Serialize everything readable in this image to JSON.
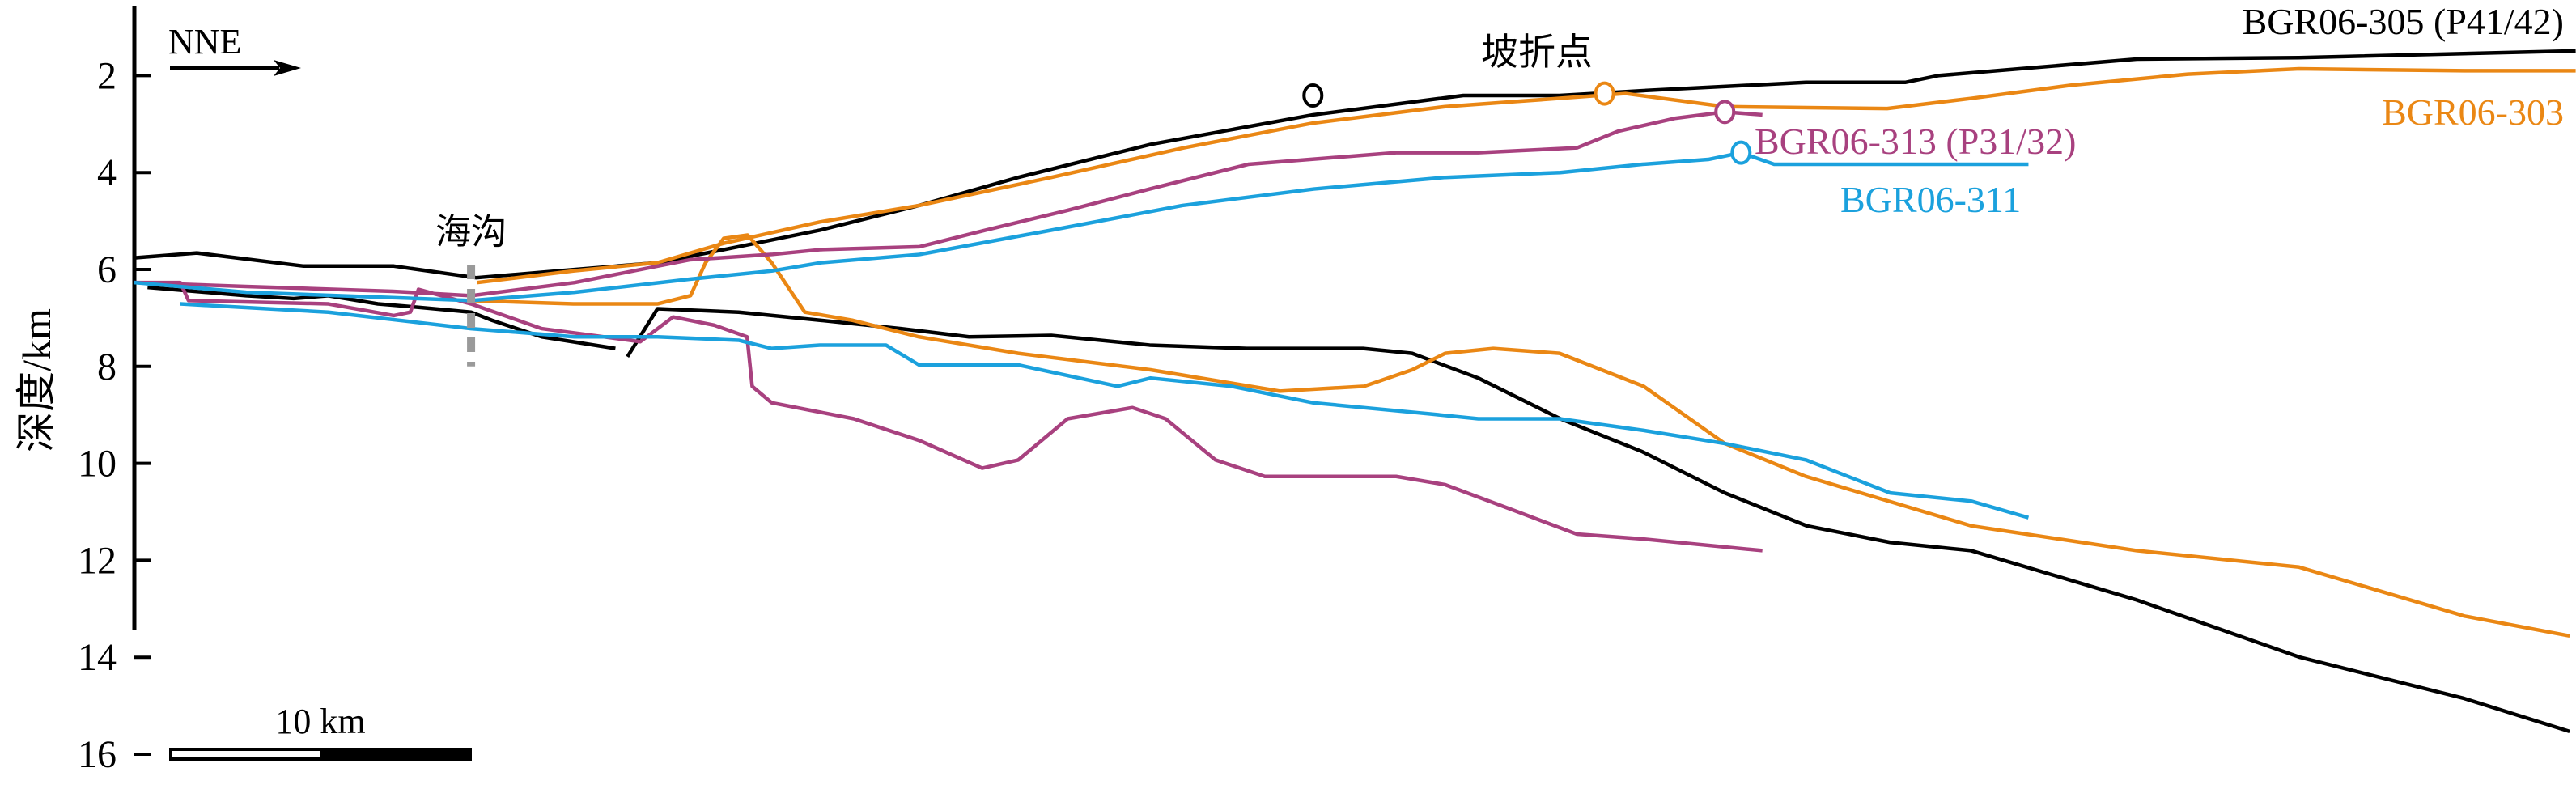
{
  "chart_data": {
    "type": "line",
    "title": "",
    "xlabel": "",
    "ylabel": "深度/km",
    "ylim": [
      1,
      16.3
    ],
    "y_inverted": true,
    "yticks": [
      2,
      4,
      6,
      8,
      10,
      12,
      14,
      16
    ],
    "ytick_labels": [
      "2",
      "4",
      "6",
      "8",
      "10",
      "12",
      "14",
      "16"
    ],
    "xlim_km": [
      0,
      81.2
    ],
    "grid": false,
    "direction_label": "NNE",
    "scale_bar": {
      "label": "10 km",
      "length_km": 10
    },
    "annotations": {
      "trench": {
        "label": "海沟",
        "x": 11.2,
        "depth_range": [
          5.9,
          8.0
        ],
        "color": "#9a9a9a"
      },
      "slope_break": {
        "label": "坡折点"
      }
    },
    "series": [
      {
        "name": "BGR06-305 (P41/42)",
        "color": "#000000",
        "slope_break": [
          39.2,
          2.41
        ],
        "segments": [
          {
            "x": [
              0,
              2.08,
              5.63,
              8.63,
              11.37,
              14.1,
              17.4,
              20.1,
              22.8,
              26.1,
              29.4,
              33.8,
              39.2,
              44.2,
              47.4,
              50.2,
              55.6,
              58.9,
              60.0,
              62.7,
              66.6,
              72.0,
              81.2
            ],
            "y": [
              5.76,
              5.66,
              5.93,
              5.93,
              6.17,
              6.03,
              5.86,
              5.53,
              5.19,
              4.68,
              4.1,
              3.42,
              2.81,
              2.41,
              2.41,
              2.31,
              2.14,
              2.14,
              2.0,
              1.86,
              1.66,
              1.63,
              1.49
            ]
          },
          {
            "x": [
              0.44,
              3.72,
              5.3,
              6.45,
              8.1,
              9.45,
              11.2,
              11.9,
              13.55,
              16.0
            ],
            "y": [
              6.37,
              6.54,
              6.6,
              6.54,
              6.71,
              6.78,
              6.88,
              7.05,
              7.39,
              7.63
            ]
          },
          {
            "x": [
              16.4,
              17.4,
              20.1,
              22.84,
              25.5,
              27.76,
              30.5,
              33.77,
              37.0,
              40.87,
              42.5,
              44.7,
              47.43,
              50.16,
              52.9,
              55.63,
              58.4,
              61.09,
              63.8,
              66.56,
              72.03,
              77.49,
              81.0
            ],
            "y": [
              7.8,
              6.81,
              6.88,
              7.05,
              7.22,
              7.39,
              7.36,
              7.56,
              7.63,
              7.63,
              7.73,
              8.24,
              9.08,
              9.76,
              10.61,
              11.29,
              11.63,
              11.8,
              12.3,
              12.81,
              14.0,
              14.85,
              15.53
            ]
          }
        ]
      },
      {
        "name": "BGR06-303",
        "color": "#ea8714",
        "slope_break": [
          48.9,
          2.37
        ],
        "segments": [
          {
            "x": [
              11.4,
              14.6,
              17.4,
              19.6,
              22.8,
              26.1,
              30.5,
              34.9,
              39.2,
              43.6,
              47.4,
              49.6,
              52.9,
              58.3,
              61.1,
              64.4,
              68.3,
              72.0,
              77.5,
              81.2
            ],
            "y": [
              6.27,
              6.03,
              5.86,
              5.46,
              5.02,
              4.68,
              4.1,
              3.49,
              2.98,
              2.64,
              2.47,
              2.37,
              2.64,
              2.68,
              2.47,
              2.2,
              1.97,
              1.86,
              1.9,
              1.9
            ]
          },
          {
            "x": [
              11.2,
              14.6,
              17.4,
              18.5,
              19.0,
              19.6,
              20.4,
              21.2,
              22.3,
              23.9,
              26.1,
              29.4,
              33.8,
              38.1,
              40.9,
              42.5,
              43.6,
              45.2,
              47.4,
              50.2,
              52.9,
              55.6,
              61.1,
              66.6,
              72.0,
              77.5,
              81.0
            ],
            "y": [
              6.64,
              6.71,
              6.71,
              6.54,
              5.86,
              5.36,
              5.29,
              5.86,
              6.88,
              7.05,
              7.39,
              7.73,
              8.07,
              8.51,
              8.41,
              8.07,
              7.73,
              7.63,
              7.73,
              8.41,
              9.59,
              10.27,
              11.29,
              11.8,
              12.14,
              13.15,
              13.56
            ]
          }
        ]
      },
      {
        "name": "BGR06-313 (P31/32)",
        "color": "#a8417f",
        "slope_break": [
          52.9,
          2.75
        ],
        "segments": [
          {
            "x": [
              0,
              3.7,
              8.6,
              11.2,
              14.64,
              18.47,
              21.2,
              22.84,
              26.12,
              28.31,
              31.04,
              33.77,
              37.05,
              41.97,
              44.7,
              47.98,
              49.34,
              51.26,
              52.9,
              54.15
            ],
            "y": [
              6.27,
              6.35,
              6.45,
              6.54,
              6.27,
              5.8,
              5.69,
              5.59,
              5.53,
              5.19,
              4.78,
              4.34,
              3.83,
              3.59,
              3.59,
              3.49,
              3.15,
              2.88,
              2.75,
              2.81
            ]
          },
          {
            "x": [
              0,
              1.53,
              1.8,
              6.45,
              8.63,
              9.18,
              9.45,
              11.2,
              13.55,
              16.83,
              17.92,
              19.29,
              20.38,
              20.55,
              21.2,
              23.93,
              26.12,
              28.2,
              29.4,
              31.04,
              33.2,
              34.3,
              35.96,
              37.6,
              41.97,
              43.6,
              45.8,
              47.98,
              50.16,
              54.15
            ],
            "y": [
              6.27,
              6.27,
              6.64,
              6.71,
              6.95,
              6.88,
              6.41,
              6.71,
              7.22,
              7.49,
              6.98,
              7.15,
              7.39,
              8.41,
              8.75,
              9.08,
              9.53,
              10.1,
              9.93,
              9.08,
              8.85,
              9.08,
              9.93,
              10.27,
              10.27,
              10.44,
              10.95,
              11.46,
              11.56,
              11.8
            ]
          }
        ]
      },
      {
        "name": "BGR06-311",
        "color": "#1ba1dd",
        "slope_break": [
          53.44,
          3.59
        ],
        "segments": [
          {
            "x": [
              0,
              3.72,
              11.2,
              14.64,
              18.47,
              21.2,
              22.84,
              26.12,
              30.49,
              34.86,
              39.23,
              43.61,
              47.43,
              50.16,
              52.35,
              53.44,
              54.54,
              58.36,
              63.0
            ],
            "y": [
              6.27,
              6.47,
              6.64,
              6.47,
              6.2,
              6.03,
              5.86,
              5.69,
              5.19,
              4.68,
              4.34,
              4.1,
              4.0,
              3.83,
              3.73,
              3.59,
              3.83,
              3.83,
              3.83
            ]
          },
          {
            "x": [
              1.53,
              6.45,
              11.2,
              14.64,
              17.4,
              20.1,
              21.2,
              22.8,
              25.0,
              26.1,
              29.4,
              32.7,
              33.8,
              36.5,
              39.2,
              43.1,
              44.7,
              47.4,
              50.2,
              52.9,
              55.6,
              58.4,
              61.1,
              63.0
            ],
            "y": [
              6.71,
              6.88,
              7.22,
              7.39,
              7.39,
              7.46,
              7.63,
              7.56,
              7.56,
              7.97,
              7.97,
              8.41,
              8.24,
              8.41,
              8.75,
              8.98,
              9.08,
              9.08,
              9.32,
              9.59,
              9.93,
              10.61,
              10.78,
              11.12
            ]
          }
        ]
      }
    ]
  }
}
